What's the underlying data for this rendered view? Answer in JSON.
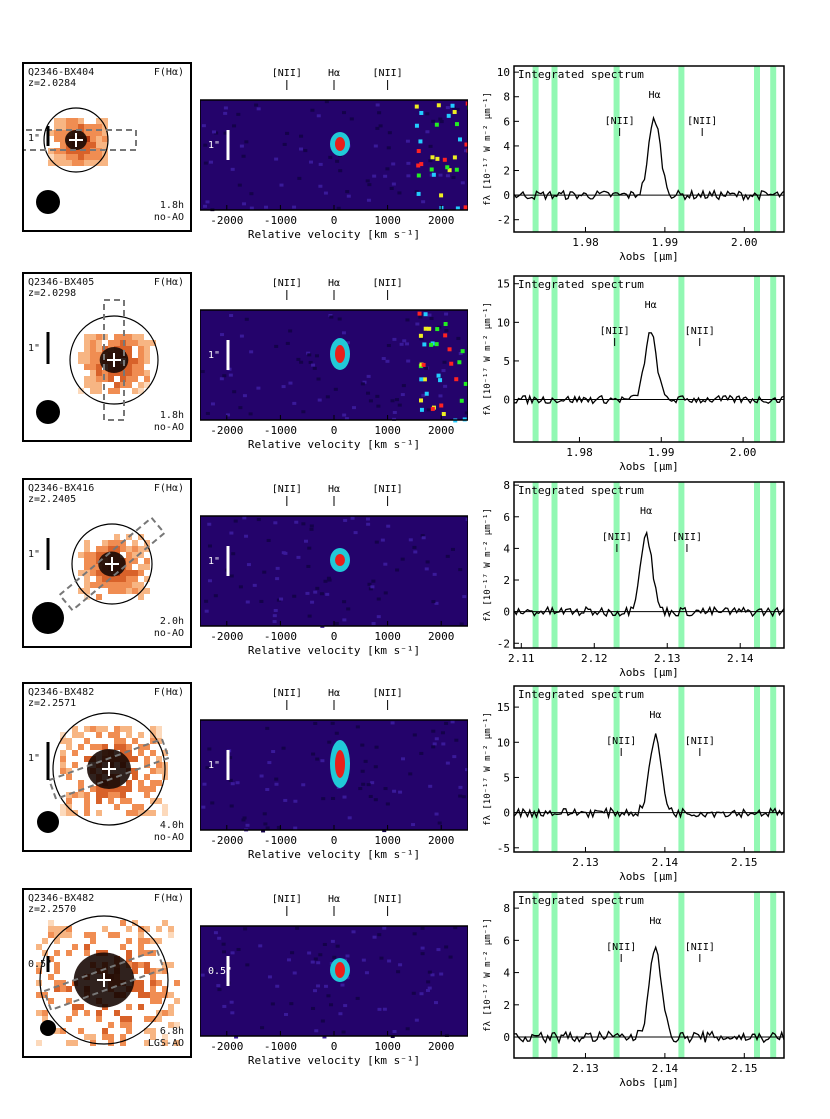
{
  "common": {
    "map_flux_label": "F(Hα)",
    "velocity_axis_label": "Relative velocity [km s⁻¹]",
    "velocity_ticks": [
      "-2000",
      "-1000",
      "0",
      "1000",
      "2000"
    ],
    "line_nii": "[NII]",
    "line_ha": "Hα",
    "spectrum_title": "Integrated spectrum",
    "flux_ylabel": "fλ [10⁻¹⁷ W m⁻² μm⁻¹]",
    "wavelength_xlabel": "λobs [μm]",
    "colors": {
      "map_core": "#1a0a05",
      "map_outer": "#f7b583",
      "spec_bg": "#24036b",
      "band": "#6ef59a"
    }
  },
  "rows": [
    {
      "name": "Q2346-BX404",
      "redshift": "z=2.0284",
      "exposure": "1.8h",
      "ao_mode": "no-AO",
      "scale_bar": "1\"",
      "spectrum": {
        "y_ticks": [
          "10",
          "8",
          "6",
          "4",
          "2",
          "0",
          "-2"
        ],
        "ylim": [
          -3,
          10.5
        ],
        "x_ticks": [
          "1.98",
          "1.99",
          "2.00"
        ],
        "xlim": [
          1.971,
          2.005
        ],
        "line_center": 1.9887,
        "peak": 6.2,
        "nii_left": 1.9843,
        "nii_right": 1.9947
      }
    },
    {
      "name": "Q2346-BX405",
      "redshift": "z=2.0298",
      "exposure": "1.8h",
      "ao_mode": "no-AO",
      "scale_bar": "1\"",
      "spectrum": {
        "y_ticks": [
          "15",
          "10",
          "5",
          "0"
        ],
        "ylim": [
          -5.5,
          16
        ],
        "x_ticks": [
          "1.98",
          "1.99",
          "2.00"
        ],
        "xlim": [
          1.972,
          2.005
        ],
        "line_center": 1.9887,
        "peak": 8.6,
        "nii_left": 1.9843,
        "nii_right": 1.9947
      }
    },
    {
      "name": "Q2346-BX416",
      "redshift": "z=2.2405",
      "exposure": "2.0h",
      "ao_mode": "no-AO",
      "scale_bar": "1\"",
      "spectrum": {
        "y_ticks": [
          "8",
          "6",
          "4",
          "2",
          "0",
          "-2"
        ],
        "ylim": [
          -2.3,
          8.2
        ],
        "x_ticks": [
          "2.11",
          "2.12",
          "2.13",
          "2.14"
        ],
        "xlim": [
          2.109,
          2.146
        ],
        "line_center": 2.1271,
        "peak": 4.9,
        "nii_left": 2.1231,
        "nii_right": 2.1327
      }
    },
    {
      "name": "Q2346-BX482",
      "redshift": "z=2.2571",
      "exposure": "4.0h",
      "ao_mode": "no-AO",
      "scale_bar": "1\"",
      "spectrum": {
        "y_ticks": [
          "15",
          "10",
          "5",
          "0",
          "-5"
        ],
        "ylim": [
          -5.6,
          18
        ],
        "x_ticks": [
          "2.13",
          "2.14",
          "2.15"
        ],
        "xlim": [
          2.121,
          2.155
        ],
        "line_center": 2.1388,
        "peak": 10.7,
        "nii_left": 2.1345,
        "nii_right": 2.1444
      }
    },
    {
      "name": "Q2346-BX482",
      "redshift": "z=2.2570",
      "exposure": "6.8h",
      "ao_mode": "LGS-AO",
      "scale_bar": "0.5\"",
      "spectrum": {
        "y_ticks": [
          "8",
          "6",
          "4",
          "2",
          "0"
        ],
        "ylim": [
          -1.3,
          9
        ],
        "x_ticks": [
          "2.13",
          "2.14",
          "2.15"
        ],
        "xlim": [
          2.121,
          2.155
        ],
        "line_center": 2.1388,
        "peak": 5.8,
        "nii_left": 2.1345,
        "nii_right": 2.1444
      }
    }
  ]
}
